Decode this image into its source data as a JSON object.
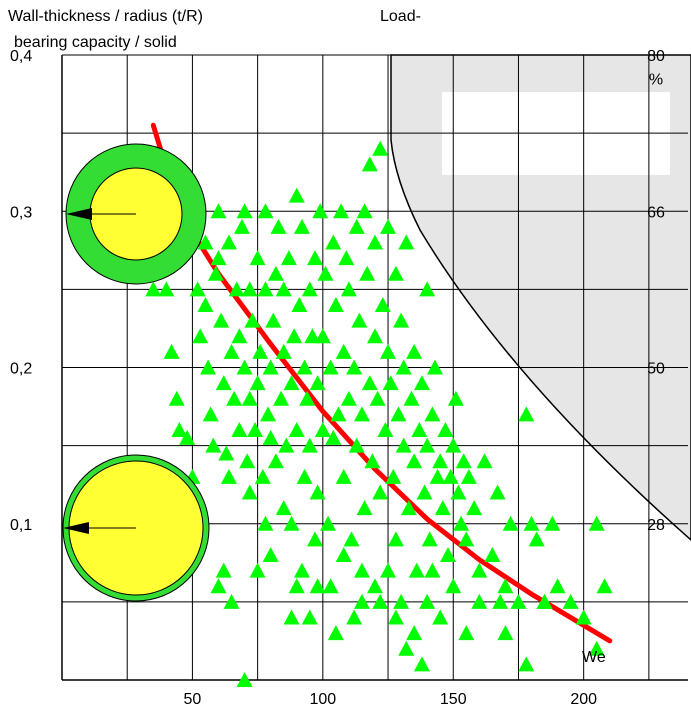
{
  "chart_data": {
    "type": "scatter",
    "title_left_line1": "Wall-thickness / radius  (t/R)",
    "title_left_line2": "bearing capacity / solid",
    "title_right": "Load-",
    "x_axis_label": "We",
    "xlim": [
      0,
      240
    ],
    "ylim": [
      0.0,
      0.4
    ],
    "x_ticks": [
      "50",
      "100",
      "150",
      "200"
    ],
    "y_ticks": [
      "0,1",
      "0,2",
      "0,3",
      "0,4"
    ],
    "right_axis_labels": [
      {
        "text": "28",
        "y": 0.1
      },
      {
        "text": "50",
        "y": 0.2
      },
      {
        "text": "66",
        "y": 0.3
      },
      {
        "text": "80",
        "y": 0.4
      },
      {
        "text": "%",
        "y": 0.385
      }
    ],
    "grid": true,
    "colors": {
      "points": "#00ff00",
      "trend": "#ff0000",
      "shaded_region": "#e6e6e6",
      "ring": "#33dd33",
      "core": "#ffff33"
    },
    "trend_line": {
      "x": [
        35,
        45,
        60,
        80,
        100,
        120,
        140,
        160,
        180,
        200,
        210
      ],
      "y": [
        0.355,
        0.3,
        0.26,
        0.215,
        0.172,
        0.135,
        0.103,
        0.077,
        0.055,
        0.035,
        0.025
      ]
    },
    "series": [
      {
        "points": [
          [
            35,
            0.25
          ],
          [
            40,
            0.25
          ],
          [
            42,
            0.21
          ],
          [
            44,
            0.18
          ],
          [
            45,
            0.16
          ],
          [
            48,
            0.155
          ],
          [
            50,
            0.13
          ],
          [
            50,
            0.1
          ],
          [
            52,
            0.25
          ],
          [
            53,
            0.22
          ],
          [
            55,
            0.24
          ],
          [
            55,
            0.28
          ],
          [
            56,
            0.2
          ],
          [
            57,
            0.17
          ],
          [
            58,
            0.15
          ],
          [
            59,
            0.26
          ],
          [
            60,
            0.27
          ],
          [
            60,
            0.3
          ],
          [
            61,
            0.23
          ],
          [
            62,
            0.19
          ],
          [
            63,
            0.145
          ],
          [
            64,
            0.13
          ],
          [
            64,
            0.28
          ],
          [
            65,
            0.21
          ],
          [
            66,
            0.18
          ],
          [
            67,
            0.25
          ],
          [
            68,
            0.22
          ],
          [
            68,
            0.16
          ],
          [
            69,
            0.29
          ],
          [
            70,
            0.3
          ],
          [
            70,
            0.2
          ],
          [
            71,
            0.14
          ],
          [
            72,
            0.25
          ],
          [
            72,
            0.18
          ],
          [
            73,
            0.23
          ],
          [
            74,
            0.16
          ],
          [
            75,
            0.19
          ],
          [
            75,
            0.27
          ],
          [
            76,
            0.21
          ],
          [
            77,
            0.13
          ],
          [
            78,
            0.25
          ],
          [
            78,
            0.3
          ],
          [
            79,
            0.17
          ],
          [
            80,
            0.2
          ],
          [
            80,
            0.155
          ],
          [
            81,
            0.23
          ],
          [
            82,
            0.26
          ],
          [
            82,
            0.14
          ],
          [
            83,
            0.29
          ],
          [
            84,
            0.18
          ],
          [
            85,
            0.21
          ],
          [
            85,
            0.25
          ],
          [
            86,
            0.15
          ],
          [
            87,
            0.27
          ],
          [
            88,
            0.19
          ],
          [
            88,
            0.1
          ],
          [
            89,
            0.22
          ],
          [
            90,
            0.31
          ],
          [
            90,
            0.16
          ],
          [
            91,
            0.24
          ],
          [
            92,
            0.29
          ],
          [
            93,
            0.2
          ],
          [
            93,
            0.13
          ],
          [
            94,
            0.18
          ],
          [
            95,
            0.25
          ],
          [
            95,
            0.15
          ],
          [
            96,
            0.22
          ],
          [
            97,
            0.27
          ],
          [
            98,
            0.19
          ],
          [
            98,
            0.12
          ],
          [
            99,
            0.3
          ],
          [
            100,
            0.22
          ],
          [
            100,
            0.16
          ],
          [
            101,
            0.26
          ],
          [
            102,
            0.1
          ],
          [
            103,
            0.2
          ],
          [
            104,
            0.28
          ],
          [
            104,
            0.155
          ],
          [
            105,
            0.24
          ],
          [
            106,
            0.17
          ],
          [
            107,
            0.3
          ],
          [
            108,
            0.21
          ],
          [
            108,
            0.13
          ],
          [
            109,
            0.27
          ],
          [
            110,
            0.18
          ],
          [
            110,
            0.25
          ],
          [
            111,
            0.09
          ],
          [
            112,
            0.2
          ],
          [
            113,
            0.29
          ],
          [
            113,
            0.15
          ],
          [
            114,
            0.23
          ],
          [
            115,
            0.17
          ],
          [
            116,
            0.3
          ],
          [
            116,
            0.11
          ],
          [
            117,
            0.26
          ],
          [
            118,
            0.19
          ],
          [
            118,
            0.33
          ],
          [
            119,
            0.14
          ],
          [
            120,
            0.22
          ],
          [
            120,
            0.28
          ],
          [
            121,
            0.18
          ],
          [
            122,
            0.34
          ],
          [
            122,
            0.12
          ],
          [
            123,
            0.24
          ],
          [
            124,
            0.16
          ],
          [
            125,
            0.29
          ],
          [
            125,
            0.21
          ],
          [
            126,
            0.19
          ],
          [
            127,
            0.13
          ],
          [
            128,
            0.26
          ],
          [
            128,
            0.09
          ],
          [
            129,
            0.17
          ],
          [
            130,
            0.23
          ],
          [
            131,
            0.2
          ],
          [
            131,
            0.15
          ],
          [
            132,
            0.28
          ],
          [
            133,
            0.11
          ],
          [
            134,
            0.18
          ],
          [
            135,
            0.14
          ],
          [
            135,
            0.21
          ],
          [
            136,
            0.07
          ],
          [
            137,
            0.16
          ],
          [
            138,
            0.19
          ],
          [
            139,
            0.12
          ],
          [
            140,
            0.25
          ],
          [
            140,
            0.15
          ],
          [
            141,
            0.09
          ],
          [
            142,
            0.17
          ],
          [
            143,
            0.2
          ],
          [
            144,
            0.13
          ],
          [
            145,
            0.14
          ],
          [
            146,
            0.11
          ],
          [
            147,
            0.16
          ],
          [
            148,
            0.08
          ],
          [
            149,
            0.13
          ],
          [
            150,
            0.15
          ],
          [
            151,
            0.18
          ],
          [
            152,
            0.12
          ],
          [
            153,
            0.1
          ],
          [
            154,
            0.14
          ],
          [
            155,
            0.09
          ],
          [
            156,
            0.13
          ],
          [
            158,
            0.11
          ],
          [
            160,
            0.07
          ],
          [
            162,
            0.14
          ],
          [
            165,
            0.08
          ],
          [
            167,
            0.12
          ],
          [
            170,
            0.06
          ],
          [
            172,
            0.1
          ],
          [
            175,
            0.05
          ],
          [
            178,
            0.17
          ],
          [
            180,
            0.1
          ],
          [
            182,
            0.09
          ],
          [
            185,
            0.05
          ],
          [
            188,
            0.1
          ],
          [
            190,
            0.06
          ],
          [
            195,
            0.05
          ],
          [
            200,
            0.04
          ],
          [
            205,
            0.1
          ],
          [
            205,
            0.02
          ],
          [
            208,
            0.06
          ],
          [
            60,
            0.06
          ],
          [
            65,
            0.05
          ],
          [
            70,
            0.0
          ],
          [
            80,
            0.08
          ],
          [
            90,
            0.06
          ],
          [
            95,
            0.04
          ],
          [
            105,
            0.03
          ],
          [
            108,
            0.08
          ],
          [
            115,
            0.07
          ],
          [
            120,
            0.06
          ],
          [
            125,
            0.07
          ],
          [
            130,
            0.05
          ],
          [
            135,
            0.03
          ],
          [
            138,
            0.01
          ],
          [
            145,
            0.04
          ],
          [
            150,
            0.06
          ],
          [
            160,
            0.05
          ],
          [
            170,
            0.03
          ],
          [
            178,
            0.01
          ],
          [
            185,
            0.05
          ],
          [
            62,
            0.07
          ],
          [
            72,
            0.12
          ],
          [
            78,
            0.1
          ],
          [
            88,
            0.04
          ],
          [
            98,
            0.06
          ],
          [
            103,
            0.06
          ],
          [
            112,
            0.04
          ],
          [
            128,
            0.04
          ],
          [
            142,
            0.07
          ],
          [
            75,
            0.07
          ],
          [
            85,
            0.11
          ],
          [
            92,
            0.07
          ],
          [
            97,
            0.09
          ],
          [
            115,
            0.05
          ],
          [
            122,
            0.05
          ],
          [
            132,
            0.02
          ],
          [
            140,
            0.05
          ],
          [
            155,
            0.03
          ],
          [
            168,
            0.05
          ]
        ]
      }
    ]
  }
}
